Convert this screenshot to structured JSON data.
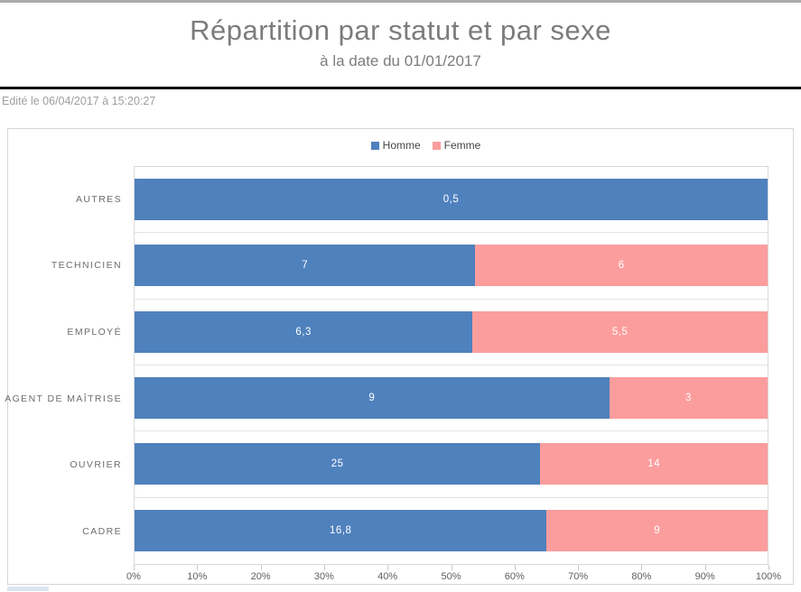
{
  "header": {
    "title": "Répartition par statut et par sexe",
    "subtitle": "à la date du 01/01/2017",
    "edited_note": "Edité le 06/04/2017 à 15:20:27"
  },
  "chart_data": {
    "type": "bar",
    "orientation": "horizontal",
    "stacked": true,
    "stack_mode": "percent_of_row_total",
    "title": "Répartition par statut et par sexe",
    "subtitle": "à la date du 01/01/2017",
    "categories": [
      "AUTRES",
      "TECHNICIEN",
      "EMPLOYÉ",
      "AGENT DE MAÎTRISE",
      "OUVRIER",
      "CADRE"
    ],
    "series": [
      {
        "name": "Homme",
        "color": "#4f81bd",
        "values": [
          0.5,
          7,
          6.3,
          9,
          25,
          16.8
        ],
        "value_labels": [
          "0,5",
          "7",
          "6,3",
          "9",
          "25",
          "16,8"
        ]
      },
      {
        "name": "Femme",
        "color": "#fc9d9d",
        "values": [
          0,
          6,
          5.5,
          3,
          14,
          9
        ],
        "value_labels": [
          "",
          "6",
          "5,5",
          "3",
          "14",
          "9"
        ]
      }
    ],
    "x_ticks": [
      "0%",
      "10%",
      "20%",
      "30%",
      "40%",
      "50%",
      "60%",
      "70%",
      "80%",
      "90%",
      "100%"
    ],
    "xlim": [
      0,
      100
    ],
    "legend_position": "top-center",
    "gridlines": "horizontal row separators only",
    "bar_label_color": "#ffffff"
  },
  "colors": {
    "homme": "#4f81bd",
    "femme": "#fc9d9d",
    "title_text": "#7c7c7c",
    "muted_text": "#9e9e9e",
    "axis_text": "#606060",
    "category_text": "#6d6d6d",
    "divider": "#000000",
    "top_strip": "#ababab",
    "panel_border": "#d6d6d6",
    "gridline": "#e3e3e3"
  }
}
